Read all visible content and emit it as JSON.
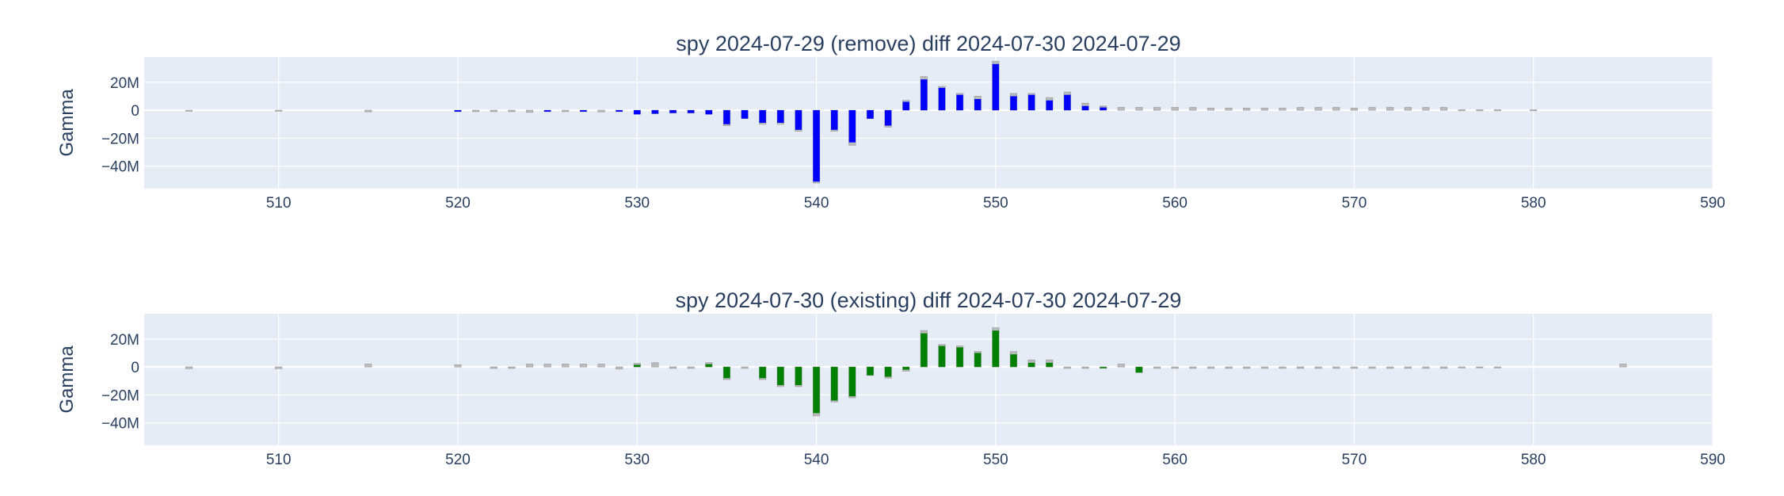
{
  "colors": {
    "plot_bg": "#e5ecf6",
    "grid": "#ffffff",
    "text": "#2a3f5f",
    "ghost_bar": "#b4b4b4",
    "panel1_bar": "#0000ff",
    "panel2_bar": "#008000"
  },
  "chart_data": [
    {
      "type": "bar",
      "title": "spy 2024-07-29 (remove) diff 2024-07-30 2024-07-29",
      "xlabel": "",
      "ylabel": "Gamma",
      "xlim": [
        502.5,
        590
      ],
      "ylim": [
        -56,
        38
      ],
      "x_ticks": [
        510,
        520,
        530,
        540,
        550,
        560,
        570,
        580,
        590
      ],
      "x_tick_labels": [
        "510",
        "520",
        "530",
        "540",
        "550",
        "560",
        "570",
        "580",
        "590"
      ],
      "y_ticks": [
        20,
        0,
        -20,
        -40
      ],
      "y_tick_labels": [
        "20M",
        "0",
        "−20M",
        "−40M"
      ],
      "grid": true,
      "units": "M",
      "series": [
        {
          "color": "#b4b4b4",
          "x": [
            505,
            510,
            515,
            520,
            521,
            522,
            523,
            524,
            525,
            526,
            527,
            528,
            529,
            530,
            531,
            532,
            533,
            534,
            535,
            536,
            537,
            538,
            539,
            540,
            541,
            542,
            543,
            544,
            545,
            546,
            547,
            548,
            549,
            550,
            551,
            552,
            553,
            554,
            555,
            556,
            557,
            558,
            559,
            560,
            561,
            562,
            563,
            564,
            565,
            566,
            567,
            568,
            569,
            570,
            571,
            572,
            573,
            574,
            575,
            576,
            577,
            578,
            580
          ],
          "values": [
            -0.3,
            -0.3,
            -1.2,
            -1,
            -1,
            -1,
            -1,
            -1.5,
            -1,
            -1,
            -1,
            -1.2,
            -1,
            -2.5,
            -2.5,
            -2,
            -2,
            -2.5,
            -11,
            -6,
            -10,
            -10,
            -15,
            -52,
            -15,
            -25,
            -6,
            -12,
            7,
            24,
            17,
            12,
            10,
            35,
            12,
            12,
            9,
            13,
            5,
            3,
            2,
            2,
            2,
            2,
            2,
            1.5,
            1.5,
            1.5,
            1.5,
            1.5,
            2,
            2,
            2,
            1.5,
            2,
            2,
            2,
            2,
            2,
            0.3,
            0.3,
            0.3,
            0.3
          ]
        },
        {
          "color": "#0000ff",
          "x": [
            520,
            525,
            527,
            529,
            530,
            531,
            532,
            533,
            534,
            535,
            536,
            537,
            538,
            539,
            540,
            541,
            542,
            543,
            544,
            545,
            546,
            547,
            548,
            549,
            550,
            551,
            552,
            553,
            554,
            555,
            556
          ],
          "values": [
            -1,
            -1,
            -1,
            -1,
            -3,
            -2.5,
            -2,
            -2,
            -3,
            -10,
            -6,
            -9,
            -9,
            -14,
            -51,
            -14,
            -23,
            -6,
            -11,
            6,
            22,
            16,
            11,
            8,
            33,
            10,
            11,
            7,
            11,
            3,
            2
          ]
        }
      ]
    },
    {
      "type": "bar",
      "title": "spy 2024-07-30 (existing) diff 2024-07-30 2024-07-29",
      "xlabel": "",
      "ylabel": "Gamma",
      "xlim": [
        502.5,
        590
      ],
      "ylim": [
        -56,
        38
      ],
      "x_ticks": [
        510,
        520,
        530,
        540,
        550,
        560,
        570,
        580,
        590
      ],
      "x_tick_labels": [
        "510",
        "520",
        "530",
        "540",
        "550",
        "560",
        "570",
        "580",
        "590"
      ],
      "y_ticks": [
        20,
        0,
        -20,
        -40
      ],
      "y_tick_labels": [
        "20M",
        "0",
        "−20M",
        "−40M"
      ],
      "grid": true,
      "units": "M",
      "series": [
        {
          "color": "#b4b4b4",
          "x": [
            505,
            510,
            515,
            520,
            522,
            523,
            524,
            525,
            526,
            527,
            528,
            529,
            530,
            531,
            532,
            533,
            534,
            535,
            536,
            537,
            538,
            539,
            540,
            541,
            542,
            543,
            544,
            545,
            546,
            547,
            548,
            549,
            550,
            551,
            552,
            553,
            554,
            555,
            556,
            557,
            558,
            559,
            560,
            561,
            562,
            563,
            564,
            565,
            566,
            567,
            568,
            569,
            570,
            571,
            572,
            573,
            574,
            575,
            576,
            577,
            578,
            585
          ],
          "values": [
            -1.2,
            -1.2,
            2,
            1.5,
            -1,
            -1,
            2,
            2,
            2,
            2,
            2,
            -1.5,
            2.5,
            3,
            -1,
            -1,
            3,
            -9,
            -1,
            -9,
            -14,
            -14,
            -35,
            -25,
            -22,
            -6,
            -8,
            -3,
            26,
            16,
            15,
            11,
            28,
            11,
            5,
            5,
            -1,
            -1,
            -1,
            2,
            -4,
            -1,
            -1,
            -1,
            -1,
            -1,
            -1,
            -1,
            -1,
            -1,
            -1,
            -1,
            -1,
            -1,
            -1,
            -1,
            -1,
            -1,
            -0.5,
            -0.5,
            -0.5,
            2
          ]
        },
        {
          "color": "#008000",
          "x": [
            530,
            534,
            535,
            537,
            538,
            539,
            540,
            541,
            542,
            543,
            544,
            545,
            546,
            547,
            548,
            549,
            550,
            551,
            552,
            553,
            556,
            558
          ],
          "values": [
            1.5,
            2,
            -8,
            -8,
            -13,
            -13,
            -33,
            -24,
            -21,
            -6,
            -7,
            -2,
            24,
            15,
            14,
            10,
            26,
            9,
            3,
            3,
            -0.8,
            -4
          ]
        }
      ]
    }
  ]
}
